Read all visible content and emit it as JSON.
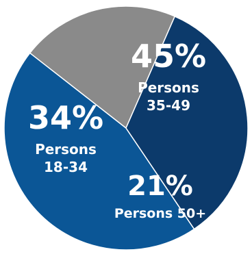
{
  "chart_data": {
    "type": "pie",
    "title": "",
    "slices": [
      {
        "percent_label": "45%",
        "value": 45,
        "label_lines": [
          "Persons",
          "35-49"
        ],
        "color": "#0B5696"
      },
      {
        "percent_label": "21%",
        "value": 21,
        "label_lines": [
          "Persons 50+"
        ],
        "color": "#8A8A8A"
      },
      {
        "percent_label": "34%",
        "value": 34,
        "label_lines": [
          "Persons",
          "18-34"
        ],
        "color": "#0C3A6B"
      }
    ]
  }
}
